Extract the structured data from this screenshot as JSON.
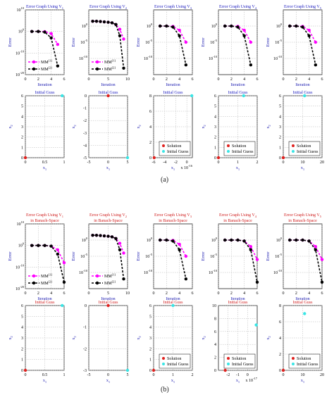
{
  "colors": {
    "mm1": "#ff00ff",
    "mm2": "#000000",
    "solution": "#e0211e",
    "initial_guess": "#39e5e5",
    "title_a": "#2020c0",
    "title_b": "#d02020",
    "axis_label": "#1a1ab0",
    "grid": "#b5b5b5"
  },
  "captions": {
    "a": "(a)",
    "b": "(b)"
  },
  "chart_data": [
    {
      "id": "a-err-1",
      "group": "a",
      "type": "line",
      "log_y": true,
      "title": [
        "Error Graph Using V1"
      ],
      "xlabel": "Iteration",
      "ylabel": "Error",
      "xlim": [
        0,
        6
      ],
      "xticks": [
        0,
        2,
        4,
        6
      ],
      "ylim": [
        1e-20,
        10000000000.0
      ],
      "yticks": [
        10000000000.0,
        1.0,
        1e-10,
        1e-20
      ],
      "ytick_labels": [
        "10^10",
        "10^0",
        "10^-10",
        "10^-20"
      ],
      "series": [
        {
          "name": "MM[1]",
          "x": [
            1,
            2,
            3,
            4,
            5
          ],
          "y": [
            1,
            1,
            0.8,
            0.1,
            1e-06
          ]
        },
        {
          "name": "MM[2]",
          "x": [
            1,
            2,
            3,
            4,
            5
          ],
          "y": [
            1,
            1,
            0.5,
            0.001,
            1e-16
          ]
        }
      ],
      "legend": "bottom"
    },
    {
      "id": "a-err-2",
      "group": "a",
      "type": "line",
      "log_y": true,
      "title": [
        "Error Graph Using V2"
      ],
      "xlabel": "Iteration",
      "ylabel": "Error",
      "xlim": [
        0,
        10
      ],
      "xticks": [
        0,
        5,
        10
      ],
      "ylim": [
        1e-15,
        100000.0
      ],
      "yticks": [
        1.0,
        1e-05,
        1e-10
      ],
      "ytick_labels": [
        "10^0",
        "10^-5",
        "10^-10"
      ],
      "series": [
        {
          "name": "MM[1]",
          "x": [
            1,
            2,
            3,
            4,
            5,
            6,
            7,
            8,
            9
          ],
          "y": [
            30,
            30,
            25,
            20,
            15,
            10,
            3,
            0.1,
            0.0001
          ]
        },
        {
          "name": "MM[2]",
          "x": [
            1,
            2,
            3,
            4,
            5,
            6,
            7,
            8,
            9
          ],
          "y": [
            30,
            30,
            25,
            20,
            15,
            10,
            3,
            0.001,
            1e-13
          ]
        }
      ],
      "legend": "bottom"
    },
    {
      "id": "a-err-3",
      "group": "a",
      "type": "line",
      "log_y": true,
      "title": [
        "Error Graph Using V3"
      ],
      "xlabel": "Iteration",
      "ylabel": "Error",
      "xlim": [
        0,
        6
      ],
      "xticks": [
        0,
        2,
        4,
        6
      ],
      "ylim": [
        1e-15,
        100000.0
      ],
      "yticks": [
        1.0,
        1e-05,
        1e-10
      ],
      "ytick_labels": [
        "10^0",
        "10^-5",
        "10^-10"
      ],
      "series": [
        {
          "name": "MM[1]",
          "x": [
            1,
            2,
            3,
            4,
            5
          ],
          "y": [
            1,
            1,
            0.8,
            0.05,
            1e-05
          ]
        },
        {
          "name": "MM[2]",
          "x": [
            1,
            2,
            3,
            4,
            5
          ],
          "y": [
            1,
            1,
            0.5,
            0.001,
            1e-12
          ]
        }
      ],
      "legend": "none"
    },
    {
      "id": "a-err-4",
      "group": "a",
      "type": "line",
      "log_y": true,
      "title": [
        "Error Graph Using V4"
      ],
      "xlabel": "Iteration",
      "ylabel": "Error",
      "xlim": [
        0,
        6
      ],
      "xticks": [
        0,
        2,
        4,
        6
      ],
      "ylim": [
        1e-15,
        100000.0
      ],
      "yticks": [
        1.0,
        1e-05,
        1e-10
      ],
      "ytick_labels": [
        "10^0",
        "10^-5",
        "10^-10"
      ],
      "series": [
        {
          "name": "MM[1]",
          "x": [
            1,
            2,
            3,
            4,
            5
          ],
          "y": [
            1,
            1,
            0.8,
            0.05,
            1e-05
          ]
        },
        {
          "name": "MM[2]",
          "x": [
            1,
            2,
            3,
            4,
            5
          ],
          "y": [
            1,
            1,
            0.5,
            0.001,
            1e-12
          ]
        }
      ],
      "legend": "none"
    },
    {
      "id": "a-err-5",
      "group": "a",
      "type": "line",
      "log_y": true,
      "title": [
        "Error Graph Using V5"
      ],
      "xlabel": "Iteration",
      "ylabel": "Error",
      "xlim": [
        0,
        6
      ],
      "xticks": [
        0,
        2,
        4,
        6
      ],
      "ylim": [
        1e-15,
        100000.0
      ],
      "yticks": [
        1.0,
        1e-05,
        1e-10
      ],
      "ytick_labels": [
        "10^0",
        "10^-5",
        "10^-10"
      ],
      "series": [
        {
          "name": "MM[1]",
          "x": [
            1,
            2,
            3,
            4,
            5
          ],
          "y": [
            1,
            1,
            0.8,
            0.05,
            1e-05
          ]
        },
        {
          "name": "MM[2]",
          "x": [
            1,
            2,
            3,
            4,
            5
          ],
          "y": [
            1,
            1,
            0.5,
            0.001,
            1e-12
          ]
        }
      ],
      "legend": "none"
    },
    {
      "id": "a-sc-1",
      "group": "a",
      "type": "scatter",
      "title": [
        "Initial Guss"
      ],
      "xlabel": "x1",
      "ylabel": "x2",
      "xlim": [
        0,
        1
      ],
      "xticks": [
        0,
        0.5,
        1
      ],
      "xtick_labels": [
        "0",
        "0.5",
        "1"
      ],
      "ylim": [
        0,
        6
      ],
      "yticks": [
        0,
        1,
        2,
        3,
        4,
        5,
        6
      ],
      "exp_label": "",
      "points": [
        {
          "name": "Solution",
          "x": 0,
          "y": 0
        },
        {
          "name": "Initial Guess",
          "x": 0.95,
          "y": 6
        }
      ],
      "legend": "none"
    },
    {
      "id": "a-sc-2",
      "group": "a",
      "type": "scatter",
      "title": [
        "Initial Guss"
      ],
      "xlabel": "x1",
      "ylabel": "x2",
      "xlim": [
        -5,
        5
      ],
      "xticks": [
        -5,
        0,
        5
      ],
      "xtick_labels": [
        "-5",
        "0",
        "5"
      ],
      "ylim": [
        -5,
        0
      ],
      "yticks": [
        -5,
        -4,
        -3,
        -2,
        -1,
        0
      ],
      "exp_label": "",
      "points": [
        {
          "name": "Solution",
          "x": 0,
          "y": 0
        },
        {
          "name": "Initial Guess",
          "x": 5,
          "y": -5
        }
      ],
      "legend": "none"
    },
    {
      "id": "a-sc-3",
      "group": "a",
      "type": "scatter",
      "title": [
        "Initial Guss"
      ],
      "xlabel": "x1",
      "ylabel": "x2",
      "xlim": [
        -6,
        1
      ],
      "xticks": [
        -6,
        -4,
        -2,
        0
      ],
      "xtick_labels": [
        "-6",
        "-4",
        "-2",
        "0"
      ],
      "ylim": [
        0,
        8
      ],
      "yticks": [
        0,
        2,
        4,
        6,
        8
      ],
      "exp_label": "x 10^-16",
      "points": [
        {
          "name": "Solution",
          "x": -5.9,
          "y": 0
        },
        {
          "name": "Initial Guess",
          "x": 0.9,
          "y": 8
        }
      ],
      "legend": "bottom-right"
    },
    {
      "id": "a-sc-4",
      "group": "a",
      "type": "scatter",
      "title": [
        "Initial Guss"
      ],
      "xlabel": "x1",
      "ylabel": "x2",
      "xlim": [
        0,
        2
      ],
      "xticks": [
        0,
        1,
        2
      ],
      "xtick_labels": [
        "0",
        "1",
        "2"
      ],
      "ylim": [
        0,
        6
      ],
      "yticks": [
        0,
        1,
        2,
        3,
        4,
        5,
        6
      ],
      "exp_label": "",
      "points": [
        {
          "name": "Solution",
          "x": 0,
          "y": 0
        },
        {
          "name": "Initial Guess",
          "x": 1.3,
          "y": 6
        }
      ],
      "legend": "bottom-right"
    },
    {
      "id": "a-sc-5",
      "group": "a",
      "type": "scatter",
      "title": [
        "Initial Guss"
      ],
      "xlabel": "x1",
      "ylabel": "x2",
      "xlim": [
        0,
        20
      ],
      "xticks": [
        0,
        10,
        20
      ],
      "xtick_labels": [
        "0",
        "10",
        "20"
      ],
      "ylim": [
        0,
        6
      ],
      "yticks": [
        0,
        1,
        2,
        3,
        4,
        5,
        6
      ],
      "exp_label": "",
      "points": [
        {
          "name": "Solution",
          "x": 0,
          "y": 0
        },
        {
          "name": "Initial Guess",
          "x": 11,
          "y": 6
        }
      ],
      "legend": "bottom-right"
    },
    {
      "id": "b-err-1",
      "group": "b",
      "type": "line",
      "log_y": true,
      "title": [
        "Error Graph Using V1",
        "in Banach-Space"
      ],
      "xlabel": "Iteration",
      "ylabel": "Error",
      "xlim": [
        0,
        6
      ],
      "xticks": [
        0,
        2,
        4,
        6
      ],
      "ylim": [
        1e-20,
        10000000000.0
      ],
      "yticks": [
        10000000000.0,
        1.0,
        1e-10,
        1e-20
      ],
      "ytick_labels": [
        "10^10",
        "10^0",
        "10^-10",
        "10^-20"
      ],
      "series": [
        {
          "name": "MM[1]",
          "x": [
            1,
            2,
            3,
            4,
            5,
            6
          ],
          "y": [
            1,
            1,
            1,
            0.5,
            0.01,
            1e-08
          ]
        },
        {
          "name": "MM[2]",
          "x": [
            1,
            2,
            3,
            4,
            5,
            6
          ],
          "y": [
            1,
            1,
            1,
            0.5,
            0.0001,
            1e-17
          ]
        }
      ],
      "legend": "bottom"
    },
    {
      "id": "b-err-2",
      "group": "b",
      "type": "line",
      "log_y": true,
      "title": [
        "Error Graph Using V2",
        "in Banach-Space"
      ],
      "xlabel": "Iteration",
      "ylabel": "Error",
      "xlim": [
        0,
        10
      ],
      "xticks": [
        0,
        5,
        10
      ],
      "ylim": [
        1e-15,
        100000.0
      ],
      "yticks": [
        1.0,
        1e-05,
        1e-10
      ],
      "ytick_labels": [
        "10^0",
        "10^-5",
        "10^-10"
      ],
      "series": [
        {
          "name": "MM[1]",
          "x": [
            1,
            2,
            3,
            4,
            5,
            6,
            7,
            8,
            9
          ],
          "y": [
            30,
            30,
            25,
            20,
            15,
            10,
            3,
            0.1,
            0.0001
          ]
        },
        {
          "name": "MM[2]",
          "x": [
            1,
            2,
            3,
            4,
            5,
            6,
            7,
            8,
            9
          ],
          "y": [
            30,
            30,
            25,
            20,
            15,
            10,
            3,
            0.001,
            1e-12
          ]
        }
      ],
      "legend": "bottom"
    },
    {
      "id": "b-err-3",
      "group": "b",
      "type": "line",
      "log_y": true,
      "title": [
        "Error Graph Using V3",
        "in Banach-Space"
      ],
      "xlabel": "Iteration",
      "ylabel": "Error",
      "xlim": [
        0,
        6
      ],
      "xticks": [
        0,
        2,
        4,
        6
      ],
      "ylim": [
        1e-15,
        100000.0
      ],
      "yticks": [
        1.0,
        1e-05,
        1e-10
      ],
      "ytick_labels": [
        "10^0",
        "10^-5",
        "10^-10"
      ],
      "series": [
        {
          "name": "MM[1]",
          "x": [
            1,
            2,
            3,
            4,
            5
          ],
          "y": [
            1,
            1,
            0.8,
            0.05,
            1e-05
          ]
        },
        {
          "name": "MM[2]",
          "x": [
            1,
            2,
            3,
            4,
            5
          ],
          "y": [
            1,
            1,
            0.5,
            0.001,
            1e-12
          ]
        }
      ],
      "legend": "none"
    },
    {
      "id": "b-err-4",
      "group": "b",
      "type": "line",
      "log_y": true,
      "title": [
        "Error Graph Using V4",
        "in Banach-Space"
      ],
      "xlabel": "Iteration",
      "ylabel": "Error",
      "xlim": [
        0,
        6
      ],
      "xticks": [
        0,
        2,
        4,
        6
      ],
      "ylim": [
        1e-15,
        100000.0
      ],
      "yticks": [
        1.0,
        1e-05,
        1e-10
      ],
      "ytick_labels": [
        "10^0",
        "10^-5",
        "10^-10"
      ],
      "series": [
        {
          "name": "MM[1]",
          "x": [
            1,
            2,
            3,
            4,
            5,
            6
          ],
          "y": [
            1,
            1,
            1,
            0.5,
            0.01,
            1e-06
          ]
        },
        {
          "name": "MM[2]",
          "x": [
            1,
            2,
            3,
            4,
            5,
            6
          ],
          "y": [
            1,
            1,
            1,
            0.5,
            0.001,
            1e-13
          ]
        }
      ],
      "legend": "none"
    },
    {
      "id": "b-err-5",
      "group": "b",
      "type": "line",
      "log_y": true,
      "title": [
        "Error Graph Using V5",
        "in Banach-Space"
      ],
      "xlabel": "Iteration",
      "ylabel": "Error",
      "xlim": [
        0,
        6
      ],
      "xticks": [
        0,
        2,
        4,
        6
      ],
      "ylim": [
        1e-15,
        100000.0
      ],
      "yticks": [
        1.0,
        1e-05,
        1e-10
      ],
      "ytick_labels": [
        "10^0",
        "10^-5",
        "10^-10"
      ],
      "series": [
        {
          "name": "MM[1]",
          "x": [
            1,
            2,
            3,
            4,
            5,
            6
          ],
          "y": [
            1,
            1,
            1,
            0.5,
            0.01,
            1e-06
          ]
        },
        {
          "name": "MM[2]",
          "x": [
            1,
            2,
            3,
            4,
            5,
            6
          ],
          "y": [
            1,
            1,
            1,
            0.5,
            0.001,
            1e-13
          ]
        }
      ],
      "legend": "none"
    },
    {
      "id": "b-sc-1",
      "group": "b",
      "type": "scatter",
      "title": [
        "Initial Guss"
      ],
      "xlabel": "x1",
      "ylabel": "x2",
      "xlim": [
        0,
        1
      ],
      "xticks": [
        0,
        0.5,
        1
      ],
      "xtick_labels": [
        "0",
        "0.5",
        "1"
      ],
      "ylim": [
        0,
        6
      ],
      "yticks": [
        0,
        1,
        2,
        3,
        4,
        5,
        6
      ],
      "exp_label": "",
      "points": [
        {
          "name": "Solution",
          "x": 0,
          "y": 0
        },
        {
          "name": "Initial Guess",
          "x": 0.95,
          "y": 6
        }
      ],
      "legend": "none"
    },
    {
      "id": "b-sc-2",
      "group": "b",
      "type": "scatter",
      "title": [
        "Initial Guss"
      ],
      "xlabel": "x1",
      "ylabel": "x2",
      "xlim": [
        -5,
        5
      ],
      "xticks": [
        -5,
        0,
        5
      ],
      "xtick_labels": [
        "-5",
        "0",
        "5"
      ],
      "ylim": [
        -3,
        0
      ],
      "yticks": [
        -3,
        -2,
        -1,
        0
      ],
      "exp_label": "",
      "points": [
        {
          "name": "Solution",
          "x": 0,
          "y": 0
        },
        {
          "name": "Initial Guess",
          "x": 5,
          "y": -3
        }
      ],
      "legend": "none"
    },
    {
      "id": "b-sc-3",
      "group": "b",
      "type": "scatter",
      "title": [
        "Initial Guss"
      ],
      "xlabel": "x1",
      "ylabel": "x2",
      "xlim": [
        0,
        2
      ],
      "xticks": [
        0,
        1,
        2
      ],
      "xtick_labels": [
        "0",
        "1",
        "2"
      ],
      "ylim": [
        0,
        6
      ],
      "yticks": [
        0,
        1,
        2,
        3,
        4,
        5,
        6
      ],
      "exp_label": "",
      "points": [
        {
          "name": "Solution",
          "x": 0,
          "y": 0
        },
        {
          "name": "Initial Guess",
          "x": 1,
          "y": 6
        }
      ],
      "legend": "bottom-right"
    },
    {
      "id": "b-sc-4",
      "group": "b",
      "type": "scatter",
      "title": [
        "Initial Guss"
      ],
      "xlabel": "x1",
      "ylabel": "x2",
      "xlim": [
        -3,
        1
      ],
      "xticks": [
        -2,
        -1,
        0
      ],
      "xtick_labels": [
        "-2",
        "-1",
        "0"
      ],
      "ylim": [
        0,
        10
      ],
      "yticks": [
        0,
        2,
        4,
        6,
        8,
        10
      ],
      "exp_label": "x 10^-17",
      "points": [
        {
          "name": "Solution",
          "x": -2.3,
          "y": 0
        },
        {
          "name": "Initial Guess",
          "x": 0.9,
          "y": 7
        }
      ],
      "legend": "bottom-right"
    },
    {
      "id": "b-sc-5",
      "group": "b",
      "type": "scatter",
      "title": [
        "Initial Guss"
      ],
      "xlabel": "x1",
      "ylabel": "x2",
      "xlim": [
        0,
        20
      ],
      "xticks": [
        0,
        10,
        20
      ],
      "xtick_labels": [
        "0",
        "10",
        "20"
      ],
      "ylim": [
        0,
        8
      ],
      "yticks": [
        0,
        2,
        4,
        6,
        8
      ],
      "exp_label": "",
      "points": [
        {
          "name": "Solution",
          "x": 0,
          "y": 0
        },
        {
          "name": "Initial Guess",
          "x": 11,
          "y": 7
        }
      ],
      "legend": "bottom-right"
    }
  ]
}
